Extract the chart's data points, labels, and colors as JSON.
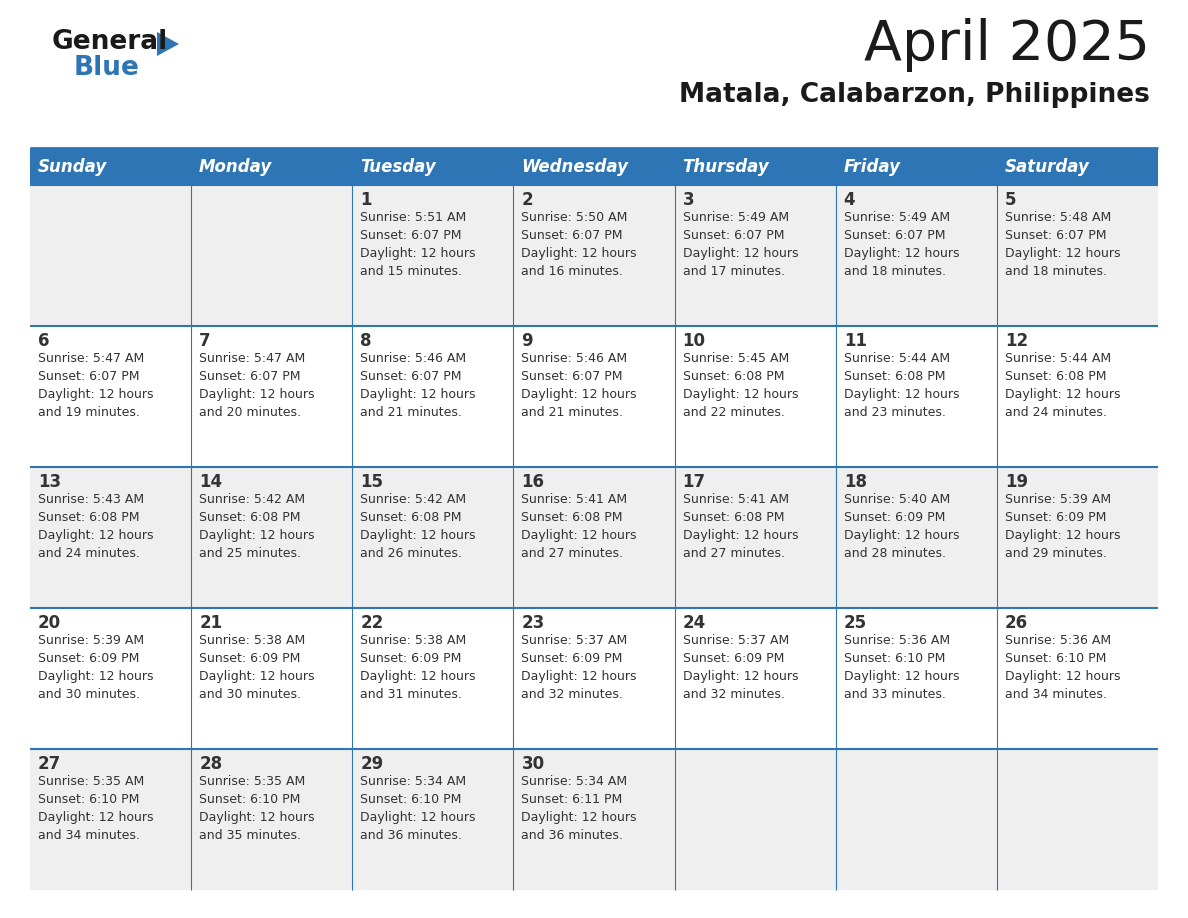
{
  "title": "April 2025",
  "subtitle": "Matala, Calabarzon, Philippines",
  "header_color": "#2E75B6",
  "header_text_color": "#FFFFFF",
  "header_days": [
    "Sunday",
    "Monday",
    "Tuesday",
    "Wednesday",
    "Thursday",
    "Friday",
    "Saturday"
  ],
  "row_bg_colors": [
    "#EFEFEF",
    "#FFFFFF",
    "#EFEFEF",
    "#FFFFFF",
    "#EFEFEF"
  ],
  "cell_border_color": "#2E75B6",
  "text_color": "#333333",
  "title_color": "#1a1a1a",
  "subtitle_color": "#1a1a1a",
  "logo_general_color": "#1a1a1a",
  "logo_blue_color": "#2E75B6",
  "days": [
    {
      "day": null,
      "sunrise": null,
      "sunset": null,
      "daylight": null
    },
    {
      "day": null,
      "sunrise": null,
      "sunset": null,
      "daylight": null
    },
    {
      "day": 1,
      "sunrise": "5:51 AM",
      "sunset": "6:07 PM",
      "daylight": "12 hours\nand 15 minutes."
    },
    {
      "day": 2,
      "sunrise": "5:50 AM",
      "sunset": "6:07 PM",
      "daylight": "12 hours\nand 16 minutes."
    },
    {
      "day": 3,
      "sunrise": "5:49 AM",
      "sunset": "6:07 PM",
      "daylight": "12 hours\nand 17 minutes."
    },
    {
      "day": 4,
      "sunrise": "5:49 AM",
      "sunset": "6:07 PM",
      "daylight": "12 hours\nand 18 minutes."
    },
    {
      "day": 5,
      "sunrise": "5:48 AM",
      "sunset": "6:07 PM",
      "daylight": "12 hours\nand 18 minutes."
    },
    {
      "day": 6,
      "sunrise": "5:47 AM",
      "sunset": "6:07 PM",
      "daylight": "12 hours\nand 19 minutes."
    },
    {
      "day": 7,
      "sunrise": "5:47 AM",
      "sunset": "6:07 PM",
      "daylight": "12 hours\nand 20 minutes."
    },
    {
      "day": 8,
      "sunrise": "5:46 AM",
      "sunset": "6:07 PM",
      "daylight": "12 hours\nand 21 minutes."
    },
    {
      "day": 9,
      "sunrise": "5:46 AM",
      "sunset": "6:07 PM",
      "daylight": "12 hours\nand 21 minutes."
    },
    {
      "day": 10,
      "sunrise": "5:45 AM",
      "sunset": "6:08 PM",
      "daylight": "12 hours\nand 22 minutes."
    },
    {
      "day": 11,
      "sunrise": "5:44 AM",
      "sunset": "6:08 PM",
      "daylight": "12 hours\nand 23 minutes."
    },
    {
      "day": 12,
      "sunrise": "5:44 AM",
      "sunset": "6:08 PM",
      "daylight": "12 hours\nand 24 minutes."
    },
    {
      "day": 13,
      "sunrise": "5:43 AM",
      "sunset": "6:08 PM",
      "daylight": "12 hours\nand 24 minutes."
    },
    {
      "day": 14,
      "sunrise": "5:42 AM",
      "sunset": "6:08 PM",
      "daylight": "12 hours\nand 25 minutes."
    },
    {
      "day": 15,
      "sunrise": "5:42 AM",
      "sunset": "6:08 PM",
      "daylight": "12 hours\nand 26 minutes."
    },
    {
      "day": 16,
      "sunrise": "5:41 AM",
      "sunset": "6:08 PM",
      "daylight": "12 hours\nand 27 minutes."
    },
    {
      "day": 17,
      "sunrise": "5:41 AM",
      "sunset": "6:08 PM",
      "daylight": "12 hours\nand 27 minutes."
    },
    {
      "day": 18,
      "sunrise": "5:40 AM",
      "sunset": "6:09 PM",
      "daylight": "12 hours\nand 28 minutes."
    },
    {
      "day": 19,
      "sunrise": "5:39 AM",
      "sunset": "6:09 PM",
      "daylight": "12 hours\nand 29 minutes."
    },
    {
      "day": 20,
      "sunrise": "5:39 AM",
      "sunset": "6:09 PM",
      "daylight": "12 hours\nand 30 minutes."
    },
    {
      "day": 21,
      "sunrise": "5:38 AM",
      "sunset": "6:09 PM",
      "daylight": "12 hours\nand 30 minutes."
    },
    {
      "day": 22,
      "sunrise": "5:38 AM",
      "sunset": "6:09 PM",
      "daylight": "12 hours\nand 31 minutes."
    },
    {
      "day": 23,
      "sunrise": "5:37 AM",
      "sunset": "6:09 PM",
      "daylight": "12 hours\nand 32 minutes."
    },
    {
      "day": 24,
      "sunrise": "5:37 AM",
      "sunset": "6:09 PM",
      "daylight": "12 hours\nand 32 minutes."
    },
    {
      "day": 25,
      "sunrise": "5:36 AM",
      "sunset": "6:10 PM",
      "daylight": "12 hours\nand 33 minutes."
    },
    {
      "day": 26,
      "sunrise": "5:36 AM",
      "sunset": "6:10 PM",
      "daylight": "12 hours\nand 34 minutes."
    },
    {
      "day": 27,
      "sunrise": "5:35 AM",
      "sunset": "6:10 PM",
      "daylight": "12 hours\nand 34 minutes."
    },
    {
      "day": 28,
      "sunrise": "5:35 AM",
      "sunset": "6:10 PM",
      "daylight": "12 hours\nand 35 minutes."
    },
    {
      "day": 29,
      "sunrise": "5:34 AM",
      "sunset": "6:10 PM",
      "daylight": "12 hours\nand 36 minutes."
    },
    {
      "day": 30,
      "sunrise": "5:34 AM",
      "sunset": "6:11 PM",
      "daylight": "12 hours\nand 36 minutes."
    },
    {
      "day": null,
      "sunrise": null,
      "sunset": null,
      "daylight": null
    },
    {
      "day": null,
      "sunrise": null,
      "sunset": null,
      "daylight": null
    },
    {
      "day": null,
      "sunrise": null,
      "sunset": null,
      "daylight": null
    },
    {
      "day": null,
      "sunrise": null,
      "sunset": null,
      "daylight": null
    }
  ],
  "fig_width": 11.88,
  "fig_height": 9.18,
  "dpi": 100
}
